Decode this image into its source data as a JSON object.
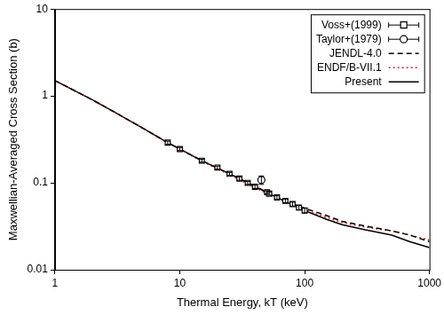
{
  "chart_data": {
    "type": "line",
    "x_label": "Thermal Energy, kT (keV)",
    "y_label": "Maxwellian-Averaged Cross Section (b)",
    "log": true,
    "grid": false,
    "legend": "upper right",
    "xlim": [
      1,
      1000
    ],
    "ylim": [
      0.01,
      10
    ],
    "xticks": [
      1,
      10,
      100,
      1000
    ],
    "yticks": [
      0.01,
      0.1,
      1,
      10
    ],
    "series": [
      {
        "name": "Voss+(1999)",
        "type": "scatter",
        "marker": "square",
        "color": "#000000",
        "x": [
          8,
          10,
          15,
          20,
          25,
          30,
          35,
          40,
          50,
          52,
          60,
          70,
          80,
          90,
          100
        ],
        "values": [
          0.29,
          0.245,
          0.18,
          0.15,
          0.127,
          0.112,
          0.1,
          0.09,
          0.078,
          0.075,
          0.068,
          0.062,
          0.057,
          0.052,
          0.048
        ],
        "yerr": [
          0.012,
          0.01,
          0.007,
          0.006,
          0.005,
          0.005,
          0.004,
          0.004,
          0.003,
          0.003,
          0.003,
          0.003,
          0.003,
          0.003,
          0.003
        ]
      },
      {
        "name": "Taylor+(1979)",
        "type": "scatter",
        "marker": "circle",
        "color": "#000000",
        "x": [
          45
        ],
        "values": [
          0.108
        ],
        "yerr": [
          0.012
        ]
      },
      {
        "name": "JENDL-4.0",
        "type": "line",
        "line_style": "dashed",
        "color": "#000000",
        "x": [
          1,
          2,
          3,
          5,
          8,
          10,
          15,
          20,
          30,
          50,
          70,
          100,
          150,
          200,
          300,
          500,
          700,
          1000
        ],
        "values": [
          1.5,
          0.9,
          0.65,
          0.43,
          0.29,
          0.245,
          0.18,
          0.148,
          0.112,
          0.078,
          0.062,
          0.051,
          0.042,
          0.036,
          0.032,
          0.028,
          0.025,
          0.021
        ]
      },
      {
        "name": "ENDF/B-VII.1",
        "type": "line",
        "line_style": "dotted",
        "color": "#dd2222",
        "x": [
          1,
          2,
          3,
          5,
          8,
          10,
          15,
          20,
          30,
          50,
          70,
          100,
          150,
          200,
          300,
          500,
          700,
          1000
        ],
        "values": [
          1.5,
          0.9,
          0.65,
          0.43,
          0.29,
          0.243,
          0.177,
          0.145,
          0.109,
          0.075,
          0.06,
          0.049,
          0.04,
          0.035,
          0.031,
          0.028,
          0.025,
          0.022
        ]
      },
      {
        "name": "Present",
        "type": "line",
        "line_style": "solid",
        "color": "#000000",
        "x": [
          1,
          2,
          3,
          5,
          8,
          10,
          15,
          20,
          30,
          50,
          70,
          100,
          150,
          200,
          300,
          500,
          700,
          1000
        ],
        "values": [
          1.5,
          0.9,
          0.65,
          0.43,
          0.29,
          0.245,
          0.18,
          0.148,
          0.112,
          0.077,
          0.061,
          0.048,
          0.038,
          0.033,
          0.029,
          0.025,
          0.021,
          0.018
        ]
      }
    ]
  }
}
